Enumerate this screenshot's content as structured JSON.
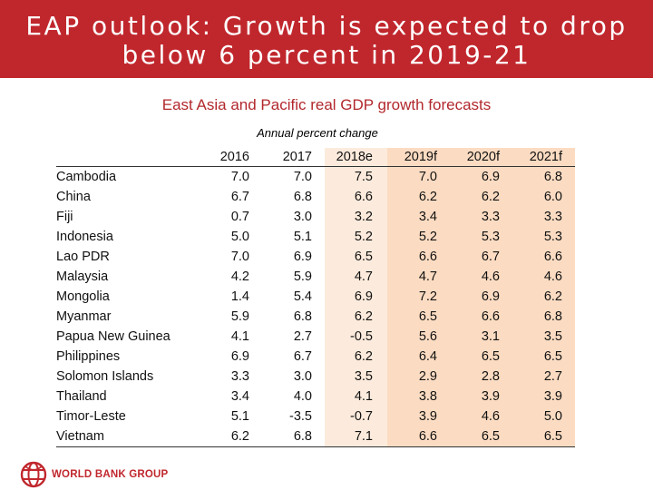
{
  "banner": {
    "line1": "EAP outlook: Growth is expected to drop",
    "line2": "below 6 percent in 2019-21"
  },
  "subtitle": "East Asia and Pacific real GDP growth forecasts",
  "unit_label": "Annual percent change",
  "table": {
    "columns": [
      "2016",
      "2017",
      "2018e",
      "2019f",
      "2020f",
      "2021f"
    ],
    "rows": [
      {
        "country": "Cambodia",
        "values": [
          "7.0",
          "7.0",
          "7.5",
          "7.0",
          "6.9",
          "6.8"
        ]
      },
      {
        "country": "China",
        "values": [
          "6.7",
          "6.8",
          "6.6",
          "6.2",
          "6.2",
          "6.0"
        ]
      },
      {
        "country": "Fiji",
        "values": [
          "0.7",
          "3.0",
          "3.2",
          "3.4",
          "3.3",
          "3.3"
        ]
      },
      {
        "country": "Indonesia",
        "values": [
          "5.0",
          "5.1",
          "5.2",
          "5.2",
          "5.3",
          "5.3"
        ]
      },
      {
        "country": "Lao PDR",
        "values": [
          "7.0",
          "6.9",
          "6.5",
          "6.6",
          "6.7",
          "6.6"
        ]
      },
      {
        "country": "Malaysia",
        "values": [
          "4.2",
          "5.9",
          "4.7",
          "4.7",
          "4.6",
          "4.6"
        ]
      },
      {
        "country": "Mongolia",
        "values": [
          "1.4",
          "5.4",
          "6.9",
          "7.2",
          "6.9",
          "6.2"
        ]
      },
      {
        "country": "Myanmar",
        "values": [
          "5.9",
          "6.8",
          "6.2",
          "6.5",
          "6.6",
          "6.8"
        ]
      },
      {
        "country": "Papua New Guinea",
        "values": [
          "4.1",
          "2.7",
          "-0.5",
          "5.6",
          "3.1",
          "3.5"
        ]
      },
      {
        "country": "Philippines",
        "values": [
          "6.9",
          "6.7",
          "6.2",
          "6.4",
          "6.5",
          "6.5"
        ]
      },
      {
        "country": "Solomon Islands",
        "values": [
          "3.3",
          "3.0",
          "3.5",
          "2.9",
          "2.8",
          "2.7"
        ]
      },
      {
        "country": "Thailand",
        "values": [
          "3.4",
          "4.0",
          "4.1",
          "3.8",
          "3.9",
          "3.9"
        ]
      },
      {
        "country": "Timor-Leste",
        "values": [
          "5.1",
          "-3.5",
          "-0.7",
          "3.9",
          "4.6",
          "5.0"
        ]
      },
      {
        "country": "Vietnam",
        "values": [
          "6.2",
          "6.8",
          "7.1",
          "6.6",
          "6.5",
          "6.5"
        ]
      }
    ]
  },
  "footer": {
    "logo_icon": "globe-icon",
    "brand": "WORLD BANK GROUP",
    "brand_color": "#c0272d"
  },
  "colors": {
    "banner_bg": "#c0272d",
    "estimate_shade": "#fcebdc",
    "forecast_shade": "#fbdcc2"
  }
}
